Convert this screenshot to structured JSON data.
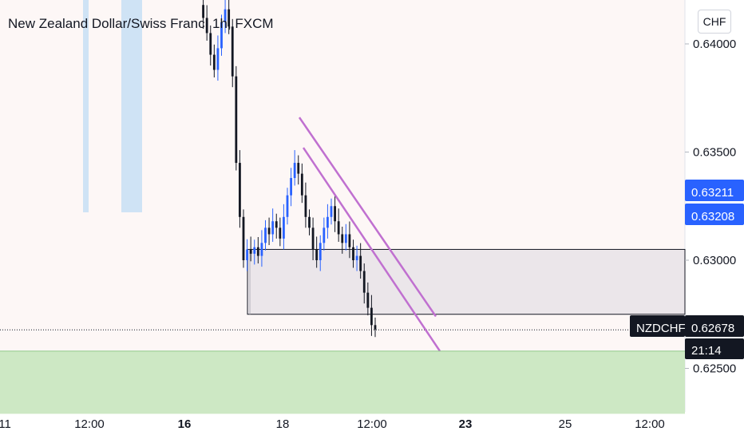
{
  "header": {
    "title": "New Zealand Dollar/Swiss Franc, 1h, FXCM",
    "currency_button": "CHF"
  },
  "colors": {
    "background": "#fdf7f6",
    "blue_band": "#cfe3f5",
    "green_zone": "#cde8c4",
    "box_fill": "#ebe6ea",
    "trendline": "#c070d0",
    "candle_up": "#2962ff",
    "candle_down": "#131722",
    "label_dark": "#131722",
    "label_blue": "#2962ff"
  },
  "price_labels": {
    "last_symbol": "NZDCHF",
    "last_price": "0.62678",
    "countdown": "21:14",
    "marker_a": "0.63211",
    "marker_b": "0.63208"
  },
  "chart_data": {
    "type": "candlestick",
    "title": "New Zealand Dollar/Swiss Franc, 1h, FXCM",
    "y_axis": {
      "ticks": [
        0.625,
        0.63,
        0.635,
        0.64
      ],
      "tick_labels": [
        "0.62500",
        "0.63000",
        "0.63500",
        "0.64000"
      ]
    },
    "x_axis": {
      "tick_labels": [
        "11",
        "12:00",
        "16",
        "18",
        "12:00",
        "23",
        "25",
        "12:00"
      ],
      "bold": [
        false,
        false,
        true,
        false,
        false,
        true,
        false,
        false
      ]
    },
    "price_path": [
      0.6418,
      0.6412,
      0.6405,
      0.6395,
      0.6388,
      0.6398,
      0.641,
      0.6416,
      0.6408,
      0.6385,
      0.6345,
      0.632,
      0.63,
      0.6305,
      0.6303,
      0.6306,
      0.6302,
      0.6308,
      0.6315,
      0.6312,
      0.6318,
      0.6315,
      0.631,
      0.632,
      0.633,
      0.6338,
      0.6345,
      0.634,
      0.633,
      0.632,
      0.6315,
      0.6305,
      0.63,
      0.6308,
      0.6315,
      0.632,
      0.6325,
      0.6318,
      0.6312,
      0.6308,
      0.6312,
      0.6306,
      0.63,
      0.6302,
      0.6295,
      0.6285,
      0.6278,
      0.627,
      0.6268
    ],
    "last_price": 0.62678,
    "horizontal_box": {
      "low": 0.6275,
      "high": 0.6305
    },
    "support_zone": {
      "from": 0.6229,
      "to": 0.6258
    },
    "trendlines": [
      {
        "from": 0.6366,
        "to": 0.6274
      },
      {
        "from": 0.6352,
        "to": 0.6258
      }
    ]
  }
}
